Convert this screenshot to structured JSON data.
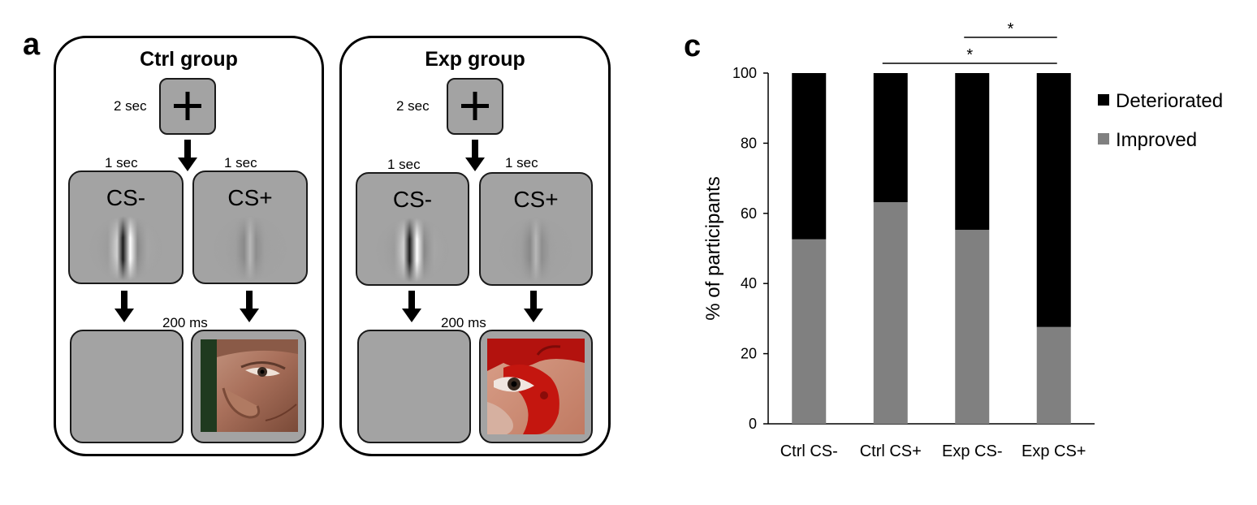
{
  "panel_a": {
    "letter": "a",
    "ctrl": {
      "title": "Ctrl group",
      "fixation_time": "2 sec",
      "cs_minus_time": "1 sec",
      "cs_plus_time": "1 sec",
      "cs_minus_label": "CS-",
      "cs_plus_label": "CS+",
      "outcome_time": "200 ms"
    },
    "exp": {
      "title": "Exp group",
      "fixation_time": "2 sec",
      "cs_minus_time": "1 sec",
      "cs_plus_time": "1 sec",
      "cs_minus_label": "CS-",
      "cs_plus_label": "CS+",
      "outcome_time": "200 ms"
    },
    "icons": [
      "plus-icon",
      "down-arrow-icon",
      "gabor-patch",
      "neutral-face-photo",
      "bloody-face-photo"
    ]
  },
  "panel_c": {
    "letter": "c"
  },
  "chart_data": {
    "type": "bar",
    "stacked": true,
    "categories": [
      "Ctrl CS-",
      "Ctrl CS+",
      "Exp CS-",
      "Exp CS+"
    ],
    "series": [
      {
        "name": "Improved",
        "color": "#808080",
        "values": [
          52.6,
          63.2,
          55.3,
          27.6
        ]
      },
      {
        "name": "Deteriorated",
        "color": "#000000",
        "values": [
          47.4,
          36.8,
          44.7,
          72.4
        ]
      }
    ],
    "ylabel": "% of participants",
    "yticks": [
      0,
      20,
      40,
      60,
      80,
      100
    ],
    "ylim": [
      0,
      100
    ],
    "legend": [
      "Deteriorated",
      "Improved"
    ],
    "legend_position": "top-right",
    "grid": false,
    "significance": [
      {
        "from": "Exp CS-",
        "to": "Exp CS+",
        "label": "*"
      },
      {
        "from": "Ctrl CS+",
        "to": "Exp CS+",
        "label": "*"
      }
    ]
  }
}
